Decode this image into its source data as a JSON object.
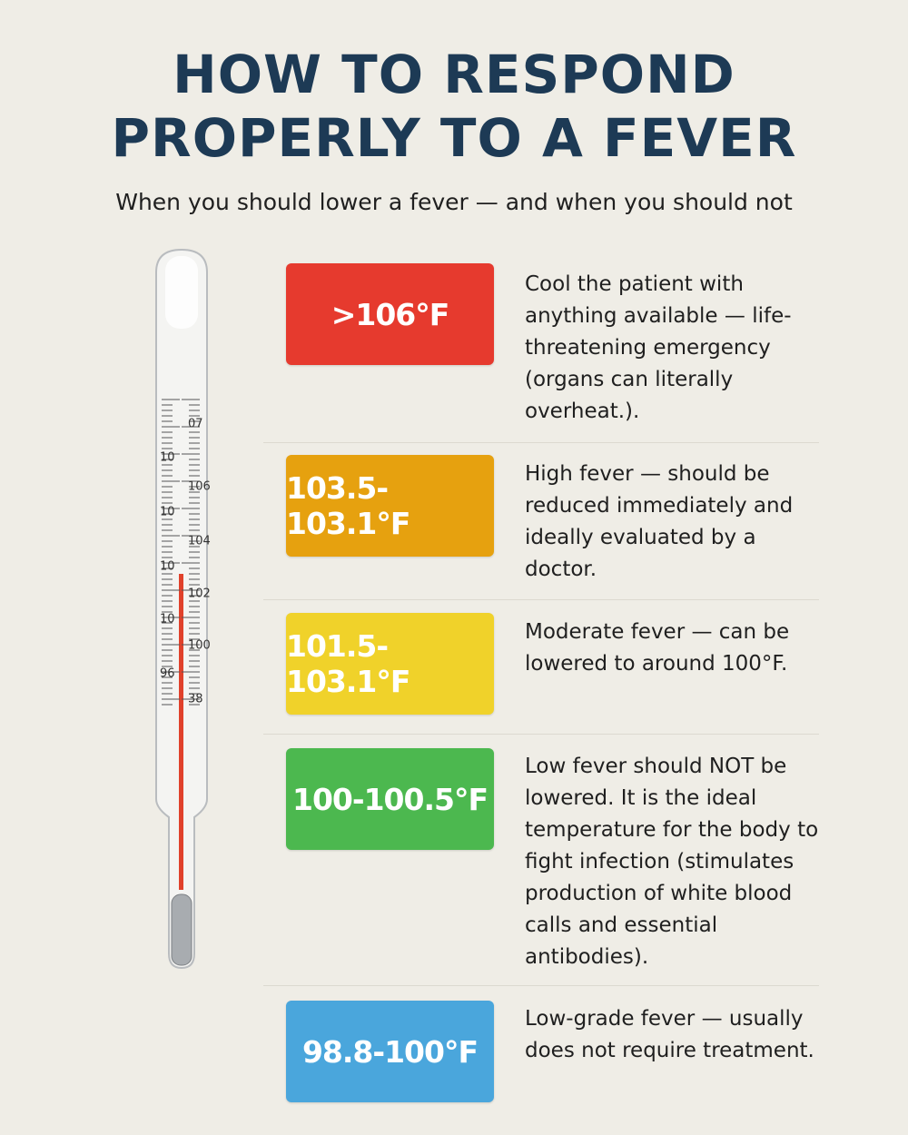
{
  "header": {
    "title_lines": [
      "HOW TO RESPOND",
      "PROPERLY TO A FEVER"
    ],
    "subtitle": "When you should lower a fever — and when you should not"
  },
  "thermometer": {
    "scale_labels": [
      "07",
      "10",
      "106",
      "10",
      "104",
      "10",
      "102",
      "10",
      "100",
      "96",
      "38"
    ]
  },
  "rows": [
    {
      "label": ">106°F",
      "text": "Cool the patient with anything available — life-threatening emergency (organs can literally overheat.)."
    },
    {
      "label": "103.5-103.1°F",
      "text": "High fever — should be reduced immediately and ideally evaluated by a doctor."
    },
    {
      "label": "101.5-103.1°F",
      "text": "Moderate fever — can be lowered to around 100°F."
    },
    {
      "label": "100-100.5°F",
      "text": "Low fever should NOT be lowered. It is the ideal temperature for the body to fight infection (stimulates production of white blood calls and essential antibodies)."
    },
    {
      "label": "98.8-100°F",
      "text": "Low-grade fever — usually does not require treatment."
    }
  ]
}
